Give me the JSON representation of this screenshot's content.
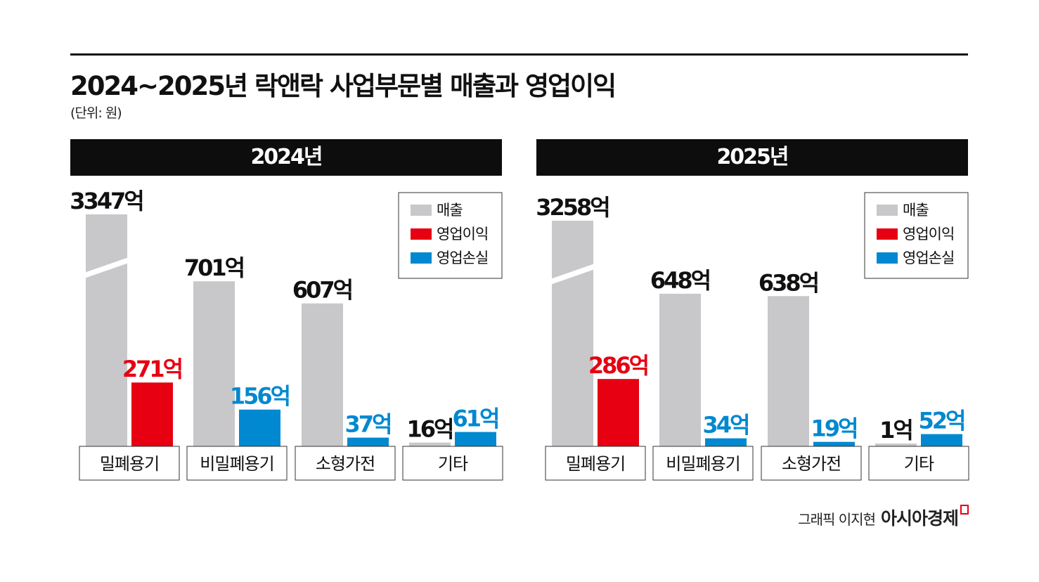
{
  "title": "2024~2025년 락앤락 사업부문별 매출과 영업이익",
  "unit": "(단위: 원)",
  "credit": "그래픽 이지현",
  "brand": "아시아경제",
  "colors": {
    "revenue": "#c8c8ca",
    "profit": "#e60012",
    "loss": "#0088d0"
  },
  "chart_data": [
    {
      "type": "bar",
      "title": "2024년",
      "categories": [
        "밀폐용기",
        "비밀폐용기",
        "소형가전",
        "기타"
      ],
      "legend": [
        "매출",
        "영업이익",
        "영업손실"
      ],
      "legend_position": "top-right",
      "series": [
        {
          "name": "매출",
          "values": [
            3347,
            701,
            607,
            16
          ]
        },
        {
          "name": "영업이익/영업손실",
          "values": [
            271,
            156,
            37,
            61
          ],
          "kind": [
            "영업이익",
            "영업손실",
            "영업손실",
            "영업손실"
          ]
        }
      ],
      "labels": {
        "revenue": [
          "3347억",
          "701억",
          "607억",
          "16억"
        ],
        "op": [
          "271억",
          "156억",
          "37억",
          "61억"
        ]
      },
      "broken_axis_bars": [
        "밀폐용기"
      ]
    },
    {
      "type": "bar",
      "title": "2025년",
      "categories": [
        "밀폐용기",
        "비밀폐용기",
        "소형가전",
        "기타"
      ],
      "legend": [
        "매출",
        "영업이익",
        "영업손실"
      ],
      "legend_position": "top-right",
      "series": [
        {
          "name": "매출",
          "values": [
            3258,
            648,
            638,
            1
          ]
        },
        {
          "name": "영업이익/영업손실",
          "values": [
            286,
            34,
            19,
            52
          ],
          "kind": [
            "영업이익",
            "영업손실",
            "영업손실",
            "영업손실"
          ]
        }
      ],
      "labels": {
        "revenue": [
          "3258억",
          "648억",
          "638억",
          "1억"
        ],
        "op": [
          "286억",
          "34억",
          "19억",
          "52억"
        ]
      },
      "broken_axis_bars": [
        "밀폐용기"
      ]
    }
  ]
}
